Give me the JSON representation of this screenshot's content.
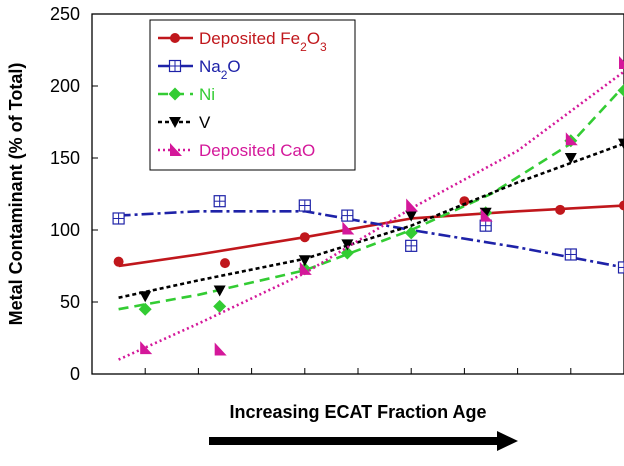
{
  "chart_data": {
    "type": "line",
    "ylabel": "Metal Contaminant (% of Total)",
    "xlabel": "Increasing ECAT Fraction Age",
    "ylim": [
      0,
      250
    ],
    "yticks": [
      0,
      50,
      100,
      150,
      200,
      250
    ],
    "xlim": [
      0,
      10
    ],
    "grid": false,
    "legend_position": "top-left",
    "series": [
      {
        "name_parts": [
          {
            "text": "Deposited Fe",
            "sub": false
          },
          {
            "text": "2",
            "sub": true
          },
          {
            "text": "O",
            "sub": false
          },
          {
            "text": "3",
            "sub": true
          }
        ],
        "color": "#c0171c",
        "dash": "",
        "marker": "circle",
        "points": [
          [
            0.5,
            78
          ],
          [
            2.5,
            77
          ],
          [
            4.0,
            95
          ],
          [
            7.0,
            120
          ],
          [
            8.8,
            114
          ],
          [
            10.0,
            117
          ]
        ],
        "fit": [
          [
            0.5,
            75
          ],
          [
            2.0,
            83
          ],
          [
            4.0,
            95
          ],
          [
            6.0,
            108
          ],
          [
            8.0,
            113
          ],
          [
            10.0,
            117
          ]
        ]
      },
      {
        "name_parts": [
          {
            "text": "Na",
            "sub": false
          },
          {
            "text": "2",
            "sub": true
          },
          {
            "text": "O",
            "sub": false
          }
        ],
        "color": "#1e22a8",
        "dash": "12,4,3,4",
        "marker": "square-plus",
        "points": [
          [
            0.5,
            108
          ],
          [
            2.4,
            120
          ],
          [
            4.0,
            117
          ],
          [
            4.8,
            110
          ],
          [
            6.0,
            89
          ],
          [
            7.4,
            103
          ],
          [
            9.0,
            83
          ],
          [
            10.0,
            74
          ]
        ],
        "fit": [
          [
            0.5,
            110
          ],
          [
            2.0,
            113
          ],
          [
            4.0,
            113
          ],
          [
            6.0,
            100
          ],
          [
            8.0,
            88
          ],
          [
            10.0,
            74
          ]
        ]
      },
      {
        "name_parts": [
          {
            "text": "Ni",
            "sub": false
          }
        ],
        "color": "#33cc33",
        "dash": "10,6",
        "marker": "diamond",
        "points": [
          [
            1.0,
            45
          ],
          [
            2.4,
            47
          ],
          [
            4.0,
            73
          ],
          [
            4.8,
            84
          ],
          [
            6.0,
            98
          ],
          [
            7.4,
            112
          ],
          [
            9.0,
            162
          ],
          [
            10.0,
            197
          ]
        ],
        "fit": [
          [
            0.5,
            45
          ],
          [
            2.0,
            55
          ],
          [
            4.0,
            72
          ],
          [
            6.0,
            100
          ],
          [
            7.5,
            125
          ],
          [
            9.0,
            160
          ],
          [
            10.0,
            200
          ]
        ]
      },
      {
        "name_parts": [
          {
            "text": "V",
            "sub": false
          }
        ],
        "color": "#000000",
        "dash": "4,3",
        "marker": "triangle-down",
        "points": [
          [
            1.0,
            54
          ],
          [
            2.4,
            58
          ],
          [
            4.0,
            79
          ],
          [
            4.8,
            90
          ],
          [
            6.0,
            110
          ],
          [
            7.4,
            112
          ],
          [
            9.0,
            150
          ],
          [
            10.0,
            160
          ]
        ],
        "fit": [
          [
            0.5,
            53
          ],
          [
            2.0,
            65
          ],
          [
            4.0,
            80
          ],
          [
            6.0,
            103
          ],
          [
            8.0,
            133
          ],
          [
            10.0,
            160
          ]
        ]
      },
      {
        "name_parts": [
          {
            "text": "Deposited CaO",
            "sub": false
          }
        ],
        "color": "#d4189a",
        "dash": "2,3",
        "marker": "triangle-flag",
        "points": [
          [
            1.0,
            18
          ],
          [
            2.4,
            17
          ],
          [
            4.0,
            73
          ],
          [
            4.8,
            101
          ],
          [
            6.0,
            117
          ],
          [
            7.4,
            110
          ],
          [
            9.0,
            163
          ],
          [
            10.0,
            216
          ]
        ],
        "fit": [
          [
            0.5,
            10
          ],
          [
            2.0,
            35
          ],
          [
            4.0,
            70
          ],
          [
            6.0,
            115
          ],
          [
            8.0,
            155
          ],
          [
            10.0,
            210
          ]
        ]
      }
    ]
  }
}
